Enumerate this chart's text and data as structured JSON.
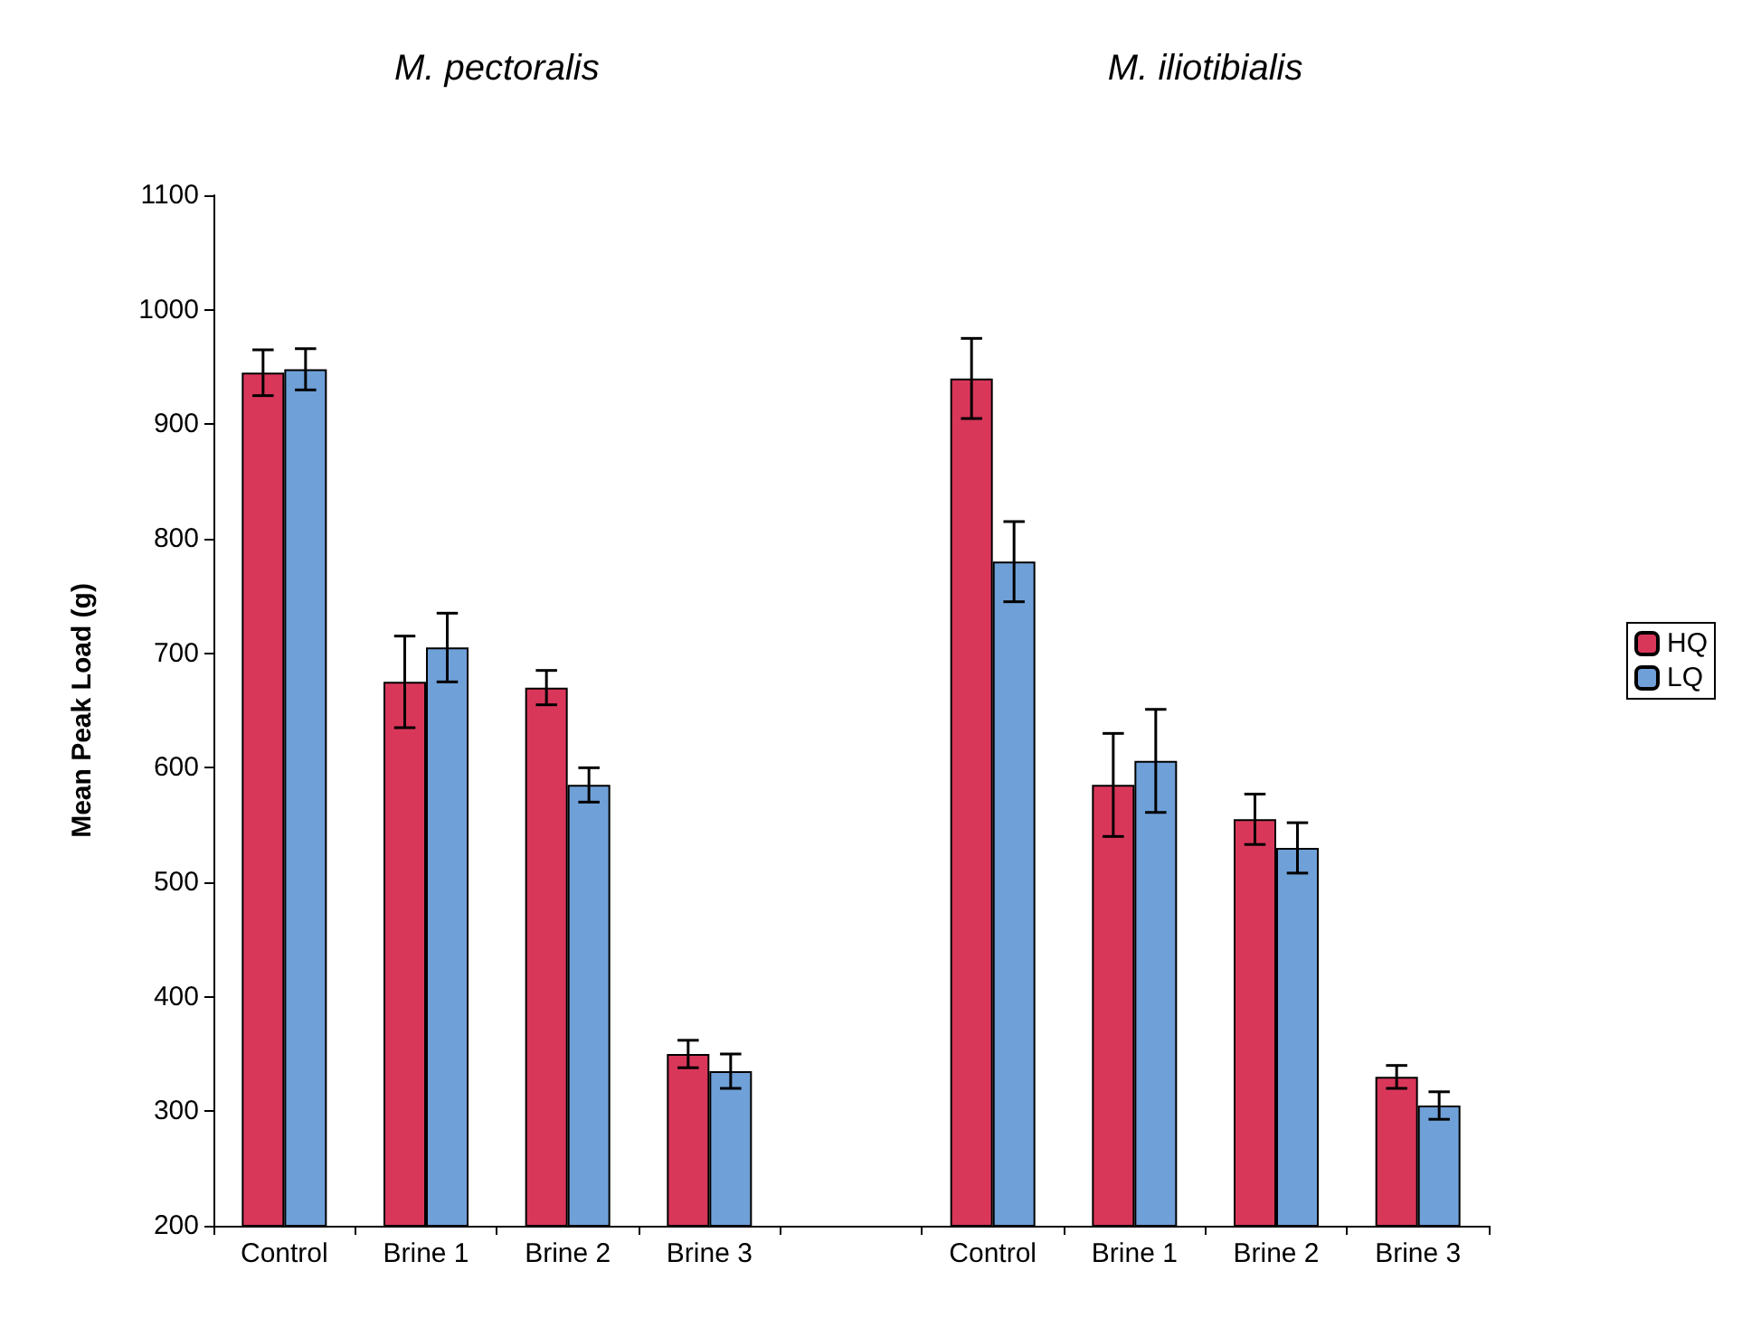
{
  "chart_data": {
    "type": "bar",
    "ylabel": "Mean Peak Load (g)",
    "annotations": [
      "M. pectoralis",
      "M. iliotibialis"
    ],
    "categories": [
      "Control",
      "Brine 1",
      "Brine 2",
      "Brine 3",
      null,
      "Control",
      "Brine 1",
      "Brine 2",
      "Brine 3"
    ],
    "series": [
      {
        "name": "HQ",
        "color": "#d9375a",
        "values": [
          945,
          675,
          670,
          350,
          null,
          940,
          585,
          555,
          330
        ],
        "errors": [
          20,
          40,
          15,
          12,
          null,
          35,
          45,
          22,
          10
        ]
      },
      {
        "name": "LQ",
        "color": "#6fa0d8",
        "values": [
          948,
          705,
          585,
          335,
          null,
          780,
          606,
          530,
          305
        ],
        "errors": [
          18,
          30,
          15,
          15,
          null,
          35,
          45,
          22,
          12
        ]
      }
    ],
    "ylim": [
      200,
      1100
    ],
    "yticks": [
      200,
      300,
      400,
      500,
      600,
      700,
      800,
      900,
      1000,
      1100
    ],
    "grid": false,
    "legend": "right"
  }
}
